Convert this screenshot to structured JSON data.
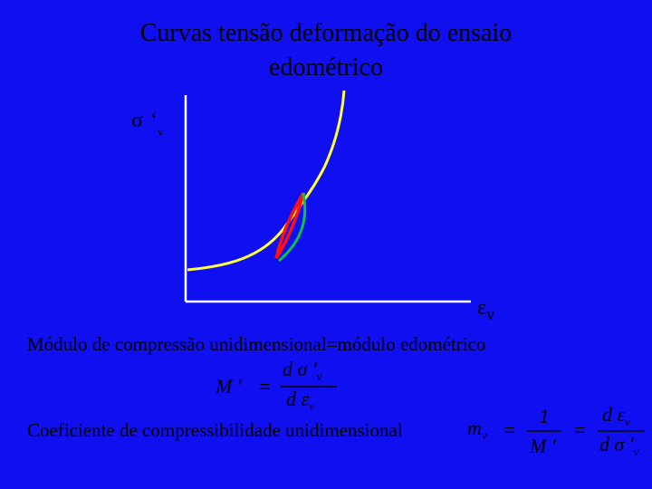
{
  "title": {
    "line1": "Curvas tensão deformação do ensaio",
    "line2": "edométrico"
  },
  "y_axis_label": {
    "symbol": "σ",
    "prime": "‘",
    "sub": "v"
  },
  "x_axis_label": {
    "symbol": "ε",
    "sub": "v"
  },
  "text1": "Módulo de compressão unidimensional=módulo edométrico",
  "formula1": {
    "lhs": "M '",
    "eq": "=",
    "num": "d σ '",
    "num_sub": "v",
    "den": "d ε",
    "den_sub": "v"
  },
  "text2": "Coeficiente de compressibilidade unidimensional",
  "formula2": {
    "lhs": "m",
    "lhs_sub": "v",
    "eq1": "=",
    "num1": "1",
    "den1": "M '",
    "eq2": "=",
    "num2": "d ε",
    "num2_sub": "v",
    "den2": "d σ '",
    "den2_sub": "v"
  }
}
